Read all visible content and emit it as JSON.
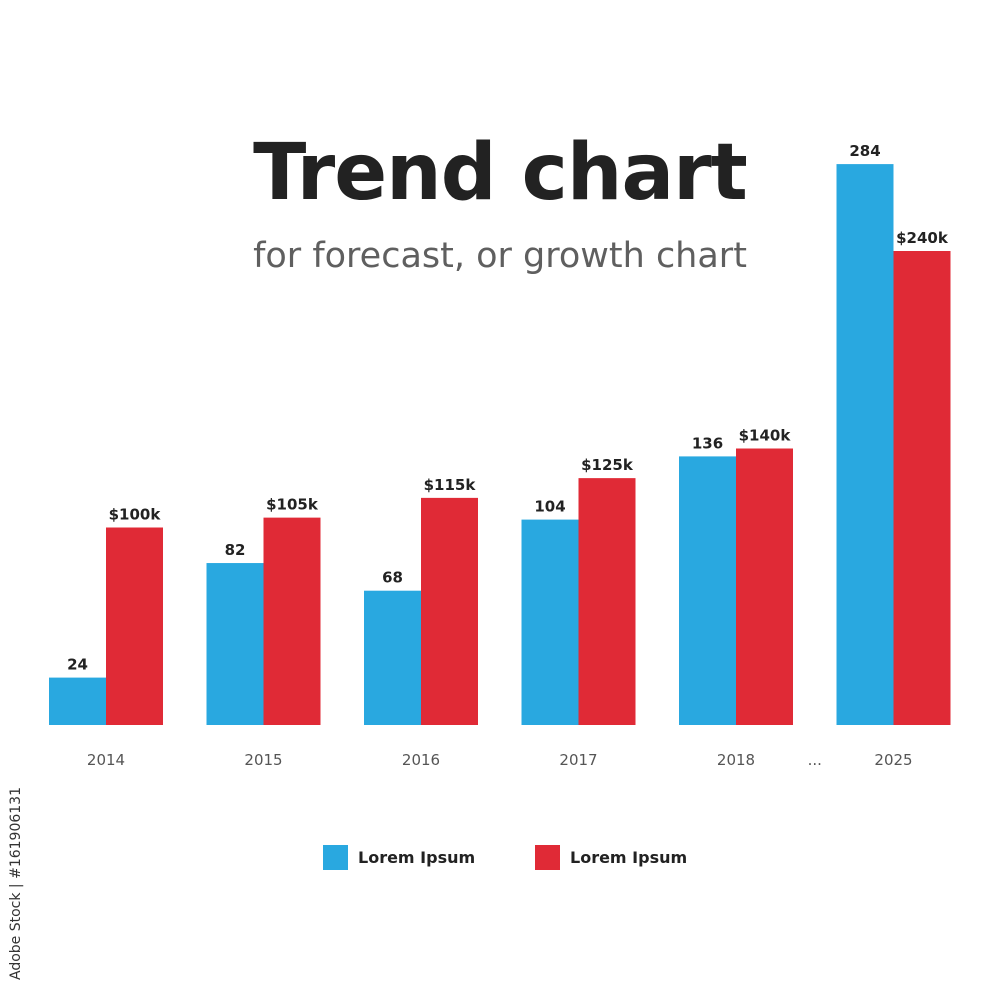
{
  "chart_data": {
    "type": "bar",
    "title": "Trend chart",
    "subtitle": "for forecast, or growth chart",
    "categories": [
      "2014",
      "2015",
      "2016",
      "2017",
      "2018",
      "2025"
    ],
    "axis_gap_label": "...",
    "series": [
      {
        "name": "Lorem Ipsum",
        "color": "#29a8e0",
        "values": [
          24,
          82,
          68,
          104,
          136,
          284
        ],
        "labels": [
          "24",
          "82",
          "68",
          "104",
          "136",
          "284"
        ]
      },
      {
        "name": "Lorem Ipsum",
        "color": "#e02a36",
        "values": [
          100,
          105,
          115,
          125,
          140,
          240
        ],
        "labels": [
          "$100k",
          "$105k",
          "$115k",
          "$125k",
          "$140k",
          "$240k"
        ]
      }
    ],
    "legend_position": "bottom",
    "grid": false,
    "ylim": [
      0,
      290
    ]
  },
  "watermark": "Adobe Stock | #161906131"
}
